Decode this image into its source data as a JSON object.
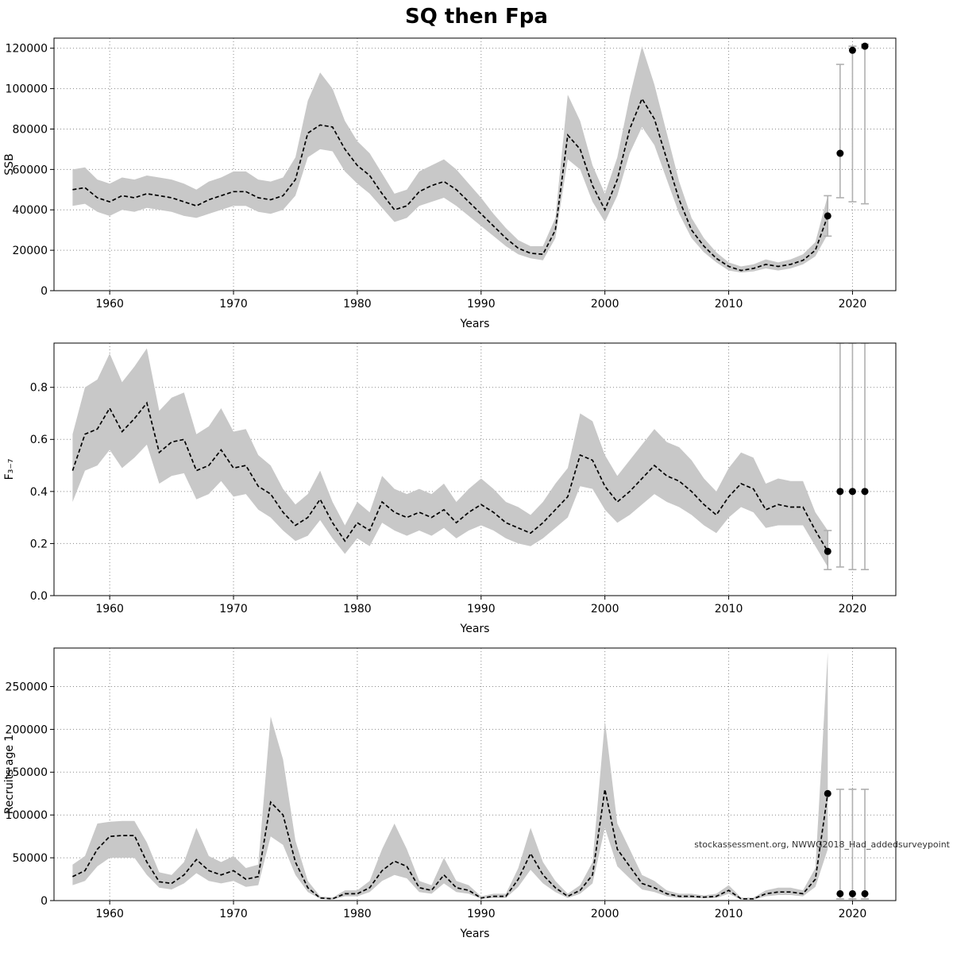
{
  "title": "SQ then Fpa",
  "colors": {
    "band": "#c8c8c8",
    "line": "#000000",
    "dot": "#000000",
    "errorbar": "#b0b0b0",
    "grid": "#8a8a8a",
    "border": "#000000",
    "watermark": "#333333"
  },
  "chart_data": [
    {
      "type": "line",
      "id": "ssb",
      "ylabel": "SSB",
      "xlabel": "Years",
      "xlim": [
        1955.5,
        2023.5
      ],
      "ylim": [
        0,
        125000
      ],
      "xticks": [
        1960,
        1970,
        1980,
        1990,
        2000,
        2010,
        2020
      ],
      "yticks": [
        0,
        20000,
        40000,
        60000,
        80000,
        100000,
        120000
      ],
      "ytick_labels": [
        "0",
        "20000",
        "40000",
        "60000",
        "80000",
        "100000",
        "120000"
      ],
      "year_start": 1957,
      "values": [
        50000,
        51000,
        46000,
        44000,
        47000,
        46000,
        48000,
        47000,
        46000,
        44000,
        42000,
        45000,
        47000,
        49000,
        49000,
        46000,
        45000,
        47000,
        55000,
        78000,
        82000,
        81000,
        70000,
        62000,
        57000,
        48000,
        40000,
        42000,
        49000,
        52000,
        54000,
        50000,
        44000,
        38000,
        32000,
        26000,
        21000,
        18500,
        18000,
        30000,
        77000,
        70000,
        52000,
        40000,
        55000,
        80000,
        95000,
        85000,
        65000,
        45000,
        30000,
        22000,
        16000,
        12000,
        10000,
        11000,
        13000,
        12000,
        13000,
        15000,
        20000,
        37000
      ],
      "ci_lower": [
        42000,
        43000,
        39000,
        37000,
        40000,
        39000,
        41000,
        40000,
        39000,
        37000,
        36000,
        38000,
        40000,
        42000,
        42000,
        39000,
        38000,
        40000,
        47000,
        66000,
        70000,
        69000,
        59000,
        53000,
        48000,
        41000,
        34000,
        36000,
        42000,
        44000,
        46000,
        42000,
        37000,
        32000,
        27000,
        22000,
        18000,
        16000,
        15000,
        26000,
        65000,
        60000,
        44000,
        34000,
        47000,
        68000,
        81000,
        72000,
        55000,
        38000,
        26000,
        19000,
        14000,
        10000,
        9000,
        9500,
        11000,
        10000,
        11000,
        13000,
        17000,
        28000
      ],
      "ci_upper": [
        60000,
        61000,
        55000,
        53000,
        56000,
        55000,
        57000,
        56000,
        55000,
        53000,
        50000,
        54000,
        56000,
        59000,
        59000,
        55000,
        54000,
        56000,
        66000,
        94000,
        108000,
        100000,
        84000,
        74000,
        68000,
        58000,
        48000,
        50000,
        59000,
        62000,
        65000,
        60000,
        53000,
        46000,
        38000,
        31000,
        25000,
        22000,
        22000,
        36000,
        97000,
        84000,
        62000,
        48000,
        66000,
        96000,
        121000,
        102000,
        78000,
        54000,
        36000,
        26000,
        19000,
        14000,
        12000,
        13000,
        15500,
        14000,
        15500,
        18000,
        24000,
        47000
      ],
      "forecast": [
        {
          "year": 2018,
          "value": 37000,
          "lo": 27000,
          "hi": 47000
        },
        {
          "year": 2019,
          "value": 68000,
          "lo": 46000,
          "hi": 112000
        },
        {
          "year": 2020,
          "value": 119000,
          "lo": 44000,
          "hi": 121000
        },
        {
          "year": 2021,
          "value": 121000,
          "lo": 43000,
          "hi": 122000
        }
      ]
    },
    {
      "type": "line",
      "id": "f3-7",
      "ylabel": "F₃₋₇",
      "xlabel": "Years",
      "xlim": [
        1955.5,
        2023.5
      ],
      "ylim": [
        0,
        0.97
      ],
      "xticks": [
        1960,
        1970,
        1980,
        1990,
        2000,
        2010,
        2020
      ],
      "yticks": [
        0,
        0.2,
        0.4,
        0.6,
        0.8
      ],
      "ytick_labels": [
        "0.0",
        "0.2",
        "0.4",
        "0.6",
        "0.8"
      ],
      "year_start": 1957,
      "values": [
        0.48,
        0.62,
        0.64,
        0.72,
        0.63,
        0.68,
        0.74,
        0.55,
        0.59,
        0.6,
        0.48,
        0.5,
        0.56,
        0.49,
        0.5,
        0.42,
        0.39,
        0.32,
        0.27,
        0.3,
        0.37,
        0.28,
        0.21,
        0.28,
        0.25,
        0.36,
        0.32,
        0.3,
        0.32,
        0.3,
        0.33,
        0.28,
        0.32,
        0.35,
        0.32,
        0.28,
        0.26,
        0.24,
        0.28,
        0.33,
        0.38,
        0.54,
        0.52,
        0.42,
        0.36,
        0.4,
        0.45,
        0.5,
        0.46,
        0.44,
        0.4,
        0.35,
        0.31,
        0.38,
        0.43,
        0.41,
        0.33,
        0.35,
        0.34,
        0.34,
        0.25,
        0.17
      ],
      "ci_lower": [
        0.36,
        0.48,
        0.5,
        0.56,
        0.49,
        0.53,
        0.58,
        0.43,
        0.46,
        0.47,
        0.37,
        0.39,
        0.44,
        0.38,
        0.39,
        0.33,
        0.3,
        0.25,
        0.21,
        0.23,
        0.29,
        0.22,
        0.16,
        0.22,
        0.19,
        0.28,
        0.25,
        0.23,
        0.25,
        0.23,
        0.26,
        0.22,
        0.25,
        0.27,
        0.25,
        0.22,
        0.2,
        0.19,
        0.22,
        0.26,
        0.3,
        0.42,
        0.41,
        0.33,
        0.28,
        0.31,
        0.35,
        0.39,
        0.36,
        0.34,
        0.31,
        0.27,
        0.24,
        0.3,
        0.34,
        0.32,
        0.26,
        0.27,
        0.27,
        0.27,
        0.19,
        0.11
      ],
      "ci_upper": [
        0.62,
        0.8,
        0.83,
        0.93,
        0.82,
        0.88,
        0.95,
        0.71,
        0.76,
        0.78,
        0.62,
        0.65,
        0.72,
        0.63,
        0.64,
        0.54,
        0.5,
        0.41,
        0.35,
        0.39,
        0.48,
        0.36,
        0.27,
        0.36,
        0.32,
        0.46,
        0.41,
        0.39,
        0.41,
        0.39,
        0.43,
        0.36,
        0.41,
        0.45,
        0.41,
        0.36,
        0.34,
        0.31,
        0.36,
        0.43,
        0.49,
        0.7,
        0.67,
        0.54,
        0.46,
        0.52,
        0.58,
        0.64,
        0.59,
        0.57,
        0.52,
        0.45,
        0.4,
        0.49,
        0.55,
        0.53,
        0.43,
        0.45,
        0.44,
        0.44,
        0.32,
        0.25
      ],
      "forecast": [
        {
          "year": 2018,
          "value": 0.17,
          "lo": 0.1,
          "hi": 0.25
        },
        {
          "year": 2019,
          "value": 0.4,
          "lo": 0.11,
          "hi": 0.97
        },
        {
          "year": 2020,
          "value": 0.4,
          "lo": 0.1,
          "hi": 0.97
        },
        {
          "year": 2021,
          "value": 0.4,
          "lo": 0.1,
          "hi": 0.97
        }
      ]
    },
    {
      "type": "line",
      "id": "recruits",
      "ylabel": "Recruits age 1",
      "xlabel": "Years",
      "xlim": [
        1955.5,
        2023.5
      ],
      "ylim": [
        0,
        295000
      ],
      "xticks": [
        1960,
        1970,
        1980,
        1990,
        2000,
        2010,
        2020
      ],
      "yticks": [
        0,
        50000,
        100000,
        150000,
        200000,
        250000
      ],
      "ytick_labels": [
        "0",
        "50000",
        "100000",
        "150000",
        "200000",
        "250000"
      ],
      "year_start": 1957,
      "values": [
        28000,
        35000,
        60000,
        75000,
        76000,
        76000,
        45000,
        22000,
        20000,
        30000,
        48000,
        35000,
        30000,
        35000,
        25000,
        28000,
        115000,
        100000,
        45000,
        15000,
        3000,
        2000,
        8000,
        8000,
        15000,
        35000,
        46000,
        40000,
        15000,
        12000,
        30000,
        15000,
        12000,
        3000,
        5000,
        5000,
        25000,
        55000,
        30000,
        15000,
        5000,
        12000,
        30000,
        130000,
        60000,
        40000,
        20000,
        15000,
        8000,
        5000,
        5000,
        4000,
        5000,
        12000,
        2000,
        2000,
        8000,
        10000,
        10000,
        8000,
        25000,
        125000
      ],
      "ci_lower": [
        18000,
        23000,
        40000,
        50000,
        50000,
        50000,
        30000,
        15000,
        13000,
        20000,
        32000,
        23000,
        20000,
        23000,
        16000,
        18000,
        75000,
        65000,
        30000,
        10000,
        2000,
        1200,
        5000,
        5000,
        10000,
        23000,
        30000,
        26000,
        10000,
        8000,
        20000,
        10000,
        8000,
        2000,
        3000,
        3000,
        16000,
        36000,
        20000,
        10000,
        3000,
        8000,
        20000,
        85000,
        40000,
        26000,
        13000,
        10000,
        5000,
        3000,
        3000,
        2500,
        3000,
        8000,
        1200,
        1200,
        5000,
        6500,
        6500,
        5000,
        16000,
        60000
      ],
      "ci_upper": [
        42000,
        52000,
        90000,
        92000,
        93000,
        93000,
        68000,
        33000,
        30000,
        45000,
        85000,
        52000,
        45000,
        52000,
        38000,
        42000,
        215000,
        165000,
        70000,
        23000,
        5000,
        3500,
        12000,
        12000,
        23000,
        60000,
        90000,
        60000,
        23000,
        18000,
        50000,
        23000,
        18000,
        5000,
        8000,
        8000,
        38000,
        85000,
        45000,
        23000,
        8000,
        18000,
        45000,
        210000,
        90000,
        60000,
        30000,
        23000,
        12000,
        8000,
        8000,
        6000,
        8000,
        18000,
        3500,
        3500,
        12000,
        15000,
        15000,
        12000,
        38000,
        290000
      ],
      "forecast": [
        {
          "year": 2018,
          "value": 125000,
          "lo": null,
          "hi": null
        },
        {
          "year": 2019,
          "value": 8000,
          "lo": 2000,
          "hi": 130000
        },
        {
          "year": 2020,
          "value": 8000,
          "lo": 2000,
          "hi": 130000
        },
        {
          "year": 2021,
          "value": 8000,
          "lo": 2000,
          "hi": 130000
        }
      ],
      "watermark": {
        "text": "stockassessment.org, NWWG2018_Had_addedsurveypoint",
        "value": 62000
      }
    }
  ]
}
